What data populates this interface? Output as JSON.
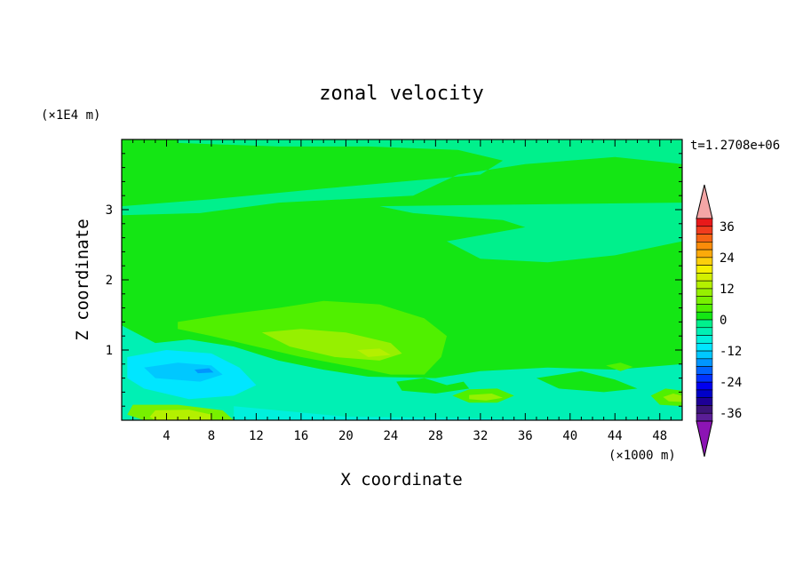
{
  "chart_data": {
    "type": "heatmap",
    "title": "zonal velocity",
    "xlabel": "X coordinate",
    "ylabel": "Z coordinate",
    "x_unit": "(×1000 m)",
    "y_unit": "(×1E4 m)",
    "time_label": "t=1.2708e+06",
    "xlim": [
      0,
      50
    ],
    "ylim": [
      0,
      4
    ],
    "x_ticks": [
      4,
      8,
      12,
      16,
      20,
      24,
      28,
      32,
      36,
      40,
      44,
      48
    ],
    "y_ticks": [
      1,
      2,
      3
    ],
    "colorbar": {
      "ticks": [
        36,
        24,
        12,
        0,
        -12,
        -24,
        -36
      ],
      "levels": [
        {
          "lo": 39,
          "hi": 99,
          "color": "#f4a6a6"
        },
        {
          "lo": 36,
          "hi": 39,
          "color": "#e8191a"
        },
        {
          "lo": 33,
          "hi": 36,
          "color": "#f03c1e"
        },
        {
          "lo": 30,
          "hi": 33,
          "color": "#f56414"
        },
        {
          "lo": 27,
          "hi": 30,
          "color": "#fa8c0a"
        },
        {
          "lo": 24,
          "hi": 27,
          "color": "#fcaa0a"
        },
        {
          "lo": 21,
          "hi": 24,
          "color": "#fccf0c"
        },
        {
          "lo": 18,
          "hi": 21,
          "color": "#f5f000"
        },
        {
          "lo": 15,
          "hi": 18,
          "color": "#d2f000"
        },
        {
          "lo": 12,
          "hi": 15,
          "color": "#b4f000"
        },
        {
          "lo": 9,
          "hi": 12,
          "color": "#96f000"
        },
        {
          "lo": 6,
          "hi": 9,
          "color": "#78f000"
        },
        {
          "lo": 3,
          "hi": 6,
          "color": "#50f000"
        },
        {
          "lo": 0,
          "hi": 3,
          "color": "#14e614"
        },
        {
          "lo": -3,
          "hi": 0,
          "color": "#00f08c"
        },
        {
          "lo": -6,
          "hi": -3,
          "color": "#00f0b4"
        },
        {
          "lo": -9,
          "hi": -6,
          "color": "#00f0dc"
        },
        {
          "lo": -12,
          "hi": -9,
          "color": "#00e6ff"
        },
        {
          "lo": -15,
          "hi": -12,
          "color": "#00c8ff"
        },
        {
          "lo": -18,
          "hi": -15,
          "color": "#0096ff"
        },
        {
          "lo": -21,
          "hi": -18,
          "color": "#0064ff"
        },
        {
          "lo": -24,
          "hi": -21,
          "color": "#0032ff"
        },
        {
          "lo": -27,
          "hi": -24,
          "color": "#0000f0"
        },
        {
          "lo": -30,
          "hi": -27,
          "color": "#0000c8"
        },
        {
          "lo": -33,
          "hi": -30,
          "color": "#1e0096"
        },
        {
          "lo": -36,
          "hi": -33,
          "color": "#3c1478"
        },
        {
          "lo": -39,
          "hi": -36,
          "color": "#5a1e96"
        },
        {
          "lo": -99,
          "hi": -39,
          "color": "#8c14b4"
        }
      ]
    },
    "regions": [
      {
        "level": 0.5,
        "shape": "background"
      },
      {
        "level": -1,
        "shape": "upper-right-band",
        "points": [
          [
            5,
            4
          ],
          [
            50,
            4
          ],
          [
            50,
            3.65
          ],
          [
            44,
            3.75
          ],
          [
            36,
            3.65
          ],
          [
            30,
            3.5
          ],
          [
            28,
            3.35
          ],
          [
            26,
            3.2
          ],
          [
            14,
            3.1
          ],
          [
            7,
            2.95
          ],
          [
            0,
            2.92
          ],
          [
            0,
            3.05
          ],
          [
            8,
            3.15
          ],
          [
            18,
            3.3
          ],
          [
            32,
            3.5
          ],
          [
            34,
            3.7
          ],
          [
            30,
            3.85
          ],
          [
            22,
            3.9
          ],
          [
            14,
            3.9
          ],
          [
            5,
            3.95
          ]
        ]
      },
      {
        "level": -1,
        "shape": "mid-right-band",
        "points": [
          [
            23,
            3.05
          ],
          [
            50,
            3.1
          ],
          [
            50,
            2.55
          ],
          [
            44,
            2.35
          ],
          [
            38,
            2.25
          ],
          [
            32,
            2.3
          ],
          [
            29,
            2.55
          ],
          [
            36,
            2.75
          ],
          [
            34,
            2.85
          ],
          [
            26,
            2.95
          ]
        ]
      },
      {
        "level": 3,
        "shape": "central-bulge",
        "points": [
          [
            5,
            1.4
          ],
          [
            9,
            1.5
          ],
          [
            14,
            1.6
          ],
          [
            18,
            1.7
          ],
          [
            23,
            1.65
          ],
          [
            27,
            1.45
          ],
          [
            29,
            1.2
          ],
          [
            28.5,
            0.9
          ],
          [
            27,
            0.65
          ],
          [
            24,
            0.65
          ],
          [
            21,
            0.75
          ],
          [
            16,
            0.9
          ],
          [
            12,
            1.05
          ],
          [
            8,
            1.2
          ],
          [
            5,
            1.3
          ]
        ]
      },
      {
        "level": 9,
        "shape": "central-core",
        "points": [
          [
            12.5,
            1.25
          ],
          [
            16,
            1.3
          ],
          [
            20,
            1.25
          ],
          [
            24,
            1.1
          ],
          [
            25,
            0.95
          ],
          [
            23,
            0.85
          ],
          [
            19,
            0.9
          ],
          [
            15,
            1.05
          ]
        ]
      },
      {
        "level": 12,
        "shape": "central-peak",
        "points": [
          [
            21,
            1.0
          ],
          [
            23,
            1.02
          ],
          [
            24,
            0.93
          ],
          [
            22,
            0.9
          ]
        ]
      },
      {
        "level": -4,
        "shape": "left-lower",
        "points": [
          [
            0,
            1.35
          ],
          [
            3,
            1.1
          ],
          [
            6,
            1.15
          ],
          [
            10,
            1.05
          ],
          [
            14,
            0.85
          ],
          [
            18,
            0.72
          ],
          [
            22,
            0.62
          ],
          [
            28,
            0.6
          ],
          [
            32,
            0.7
          ],
          [
            38,
            0.75
          ],
          [
            44,
            0.72
          ],
          [
            50,
            0.8
          ],
          [
            50,
            0
          ],
          [
            0,
            0
          ]
        ]
      },
      {
        "level": -10,
        "shape": "left-jet",
        "points": [
          [
            0.5,
            0.9
          ],
          [
            4,
            1.0
          ],
          [
            8,
            0.95
          ],
          [
            10.5,
            0.75
          ],
          [
            12,
            0.5
          ],
          [
            10,
            0.35
          ],
          [
            6,
            0.3
          ],
          [
            2,
            0.45
          ],
          [
            0.5,
            0.6
          ]
        ]
      },
      {
        "level": -13,
        "shape": "left-jet-core",
        "points": [
          [
            2,
            0.75
          ],
          [
            5,
            0.82
          ],
          [
            8,
            0.78
          ],
          [
            9,
            0.65
          ],
          [
            7,
            0.55
          ],
          [
            3,
            0.6
          ]
        ]
      },
      {
        "level": -16,
        "shape": "left-jet-dot",
        "points": [
          [
            6.5,
            0.72
          ],
          [
            7.8,
            0.74
          ],
          [
            8.2,
            0.68
          ],
          [
            6.8,
            0.67
          ]
        ]
      },
      {
        "level": -7,
        "shape": "bottom-band",
        "points": [
          [
            10,
            0.2
          ],
          [
            20,
            0.05
          ],
          [
            34,
            0.02
          ],
          [
            40,
            0
          ],
          [
            10,
            0
          ]
        ]
      },
      {
        "level": 6,
        "shape": "bottom-left-warm",
        "points": [
          [
            1,
            0.22
          ],
          [
            5,
            0.22
          ],
          [
            9,
            0.14
          ],
          [
            10,
            0
          ],
          [
            2,
            0
          ],
          [
            0.5,
            0.08
          ]
        ]
      },
      {
        "level": 14,
        "shape": "bottom-left-core",
        "points": [
          [
            3,
            0.14
          ],
          [
            6,
            0.15
          ],
          [
            8,
            0.08
          ],
          [
            8,
            0
          ],
          [
            3,
            0
          ],
          [
            2.5,
            0.05
          ]
        ]
      },
      {
        "level": 4,
        "shape": "warm-blob-32",
        "points": [
          [
            29.5,
            0.35
          ],
          [
            31,
            0.44
          ],
          [
            33.5,
            0.45
          ],
          [
            35,
            0.35
          ],
          [
            33.5,
            0.25
          ],
          [
            31,
            0.25
          ]
        ]
      },
      {
        "level": 9,
        "shape": "warm-core-32",
        "points": [
          [
            31,
            0.36
          ],
          [
            33,
            0.38
          ],
          [
            34,
            0.32
          ],
          [
            32.5,
            0.28
          ],
          [
            31,
            0.3
          ]
        ]
      },
      {
        "level": 4,
        "shape": "warm-blob-45",
        "points": [
          [
            43.2,
            0.78
          ],
          [
            44.5,
            0.82
          ],
          [
            45.6,
            0.76
          ],
          [
            44.5,
            0.7
          ]
        ]
      },
      {
        "level": 4,
        "shape": "warm-blob-49",
        "points": [
          [
            47.2,
            0.35
          ],
          [
            48.5,
            0.45
          ],
          [
            50,
            0.42
          ],
          [
            50,
            0.2
          ],
          [
            48,
            0.22
          ]
        ]
      },
      {
        "level": 9,
        "shape": "warm-core-49",
        "points": [
          [
            48.3,
            0.33
          ],
          [
            49.2,
            0.38
          ],
          [
            50,
            0.35
          ],
          [
            50,
            0.26
          ],
          [
            48.8,
            0.27
          ]
        ]
      },
      {
        "level": 2,
        "shape": "patch-24",
        "points": [
          [
            24.5,
            0.55
          ],
          [
            27,
            0.6
          ],
          [
            29,
            0.5
          ],
          [
            30.5,
            0.55
          ],
          [
            31,
            0.45
          ],
          [
            28,
            0.38
          ],
          [
            25,
            0.42
          ]
        ]
      },
      {
        "level": 2,
        "shape": "patch-right",
        "points": [
          [
            37,
            0.6
          ],
          [
            41,
            0.7
          ],
          [
            44,
            0.58
          ],
          [
            46,
            0.45
          ],
          [
            43,
            0.4
          ],
          [
            39,
            0.45
          ]
        ]
      }
    ]
  }
}
